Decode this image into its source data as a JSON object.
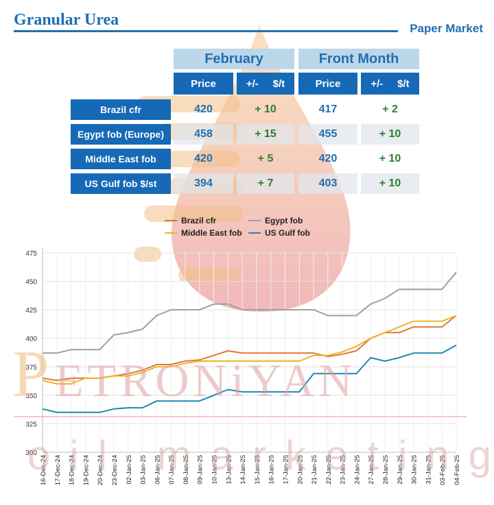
{
  "header": {
    "title": "Granular Urea",
    "subtitle": "Paper Market"
  },
  "watermark": {
    "line1": "PETRONiYAN",
    "line2": "oil marketing"
  },
  "table": {
    "groups": [
      "February",
      "Front Month"
    ],
    "subheaders": {
      "feb_price": "Price",
      "feb_change": "+/-     $/t",
      "fm_price": "Price",
      "fm_change": "+/-     $/t"
    },
    "rows": [
      {
        "label": "Brazil cfr",
        "feb_price": "420",
        "feb_change": "+ 10",
        "fm_price": "417",
        "fm_change": "+ 2"
      },
      {
        "label": "Egypt fob (Europe)",
        "feb_price": "458",
        "feb_change": "+ 15",
        "fm_price": "455",
        "fm_change": "+ 10"
      },
      {
        "label": "Middle East fob",
        "feb_price": "420",
        "feb_change": "+ 5",
        "fm_price": "420",
        "fm_change": "+ 10"
      },
      {
        "label": "US Gulf fob $/st",
        "feb_price": "394",
        "feb_change": "+ 7",
        "fm_price": "403",
        "fm_change": "+ 10"
      }
    ]
  },
  "chart_data": {
    "type": "line",
    "title": "",
    "xlabel": "",
    "ylabel": "",
    "ylim": [
      300,
      475
    ],
    "yticks": [
      300,
      325,
      350,
      375,
      400,
      425,
      450,
      475
    ],
    "grid": true,
    "legend_position": "top-center",
    "x": [
      "16-Dec-24",
      "17-Dec-24",
      "18-Dec-24",
      "19-Dec-24",
      "20-Dec-24",
      "23-Dec-24",
      "02-Jan-25",
      "03-Jan-25",
      "06-Jan-25",
      "07-Jan-25",
      "08-Jan-25",
      "09-Jan-25",
      "10-Jan-25",
      "13-Jan-25",
      "14-Jan-25",
      "15-Jan-25",
      "16-Jan-25",
      "17-Jan-25",
      "20-Jan-25",
      "21-Jan-25",
      "22-Jan-25",
      "23-Jan-25",
      "24-Jan-25",
      "27-Jan-25",
      "28-Jan-25",
      "29-Jan-25",
      "30-Jan-25",
      "31-Jan-25",
      "03-Feb-25",
      "04-Feb-25"
    ],
    "series": [
      {
        "name": "Brazil cfr",
        "color": "#e0763a",
        "values": [
          365,
          363,
          365,
          365,
          365,
          367,
          369,
          372,
          377,
          377,
          380,
          381,
          385,
          389,
          387,
          387,
          387,
          387,
          387,
          387,
          384,
          386,
          389,
          400,
          405,
          405,
          410,
          410,
          410,
          420
        ]
      },
      {
        "name": "Egypt fob",
        "color": "#9e9e9e",
        "values": [
          387,
          387,
          390,
          390,
          390,
          403,
          405,
          408,
          420,
          425,
          425,
          425,
          430,
          430,
          425,
          425,
          425,
          425,
          425,
          425,
          420,
          420,
          420,
          430,
          435,
          443,
          443,
          443,
          443,
          458
        ]
      },
      {
        "name": "Middle East fob",
        "color": "#f0b323",
        "values": [
          363,
          360,
          360,
          365,
          365,
          367,
          367,
          370,
          375,
          375,
          378,
          380,
          380,
          380,
          380,
          380,
          380,
          380,
          380,
          385,
          385,
          388,
          393,
          400,
          405,
          410,
          415,
          415,
          415,
          420
        ]
      },
      {
        "name": "US Gulf fob",
        "color": "#1e88b4",
        "values": [
          338,
          335,
          335,
          335,
          335,
          338,
          339,
          339,
          345,
          345,
          345,
          345,
          350,
          355,
          353,
          353,
          353,
          353,
          353,
          369,
          369,
          369,
          369,
          383,
          380,
          383,
          387,
          387,
          387,
          394
        ]
      }
    ]
  }
}
